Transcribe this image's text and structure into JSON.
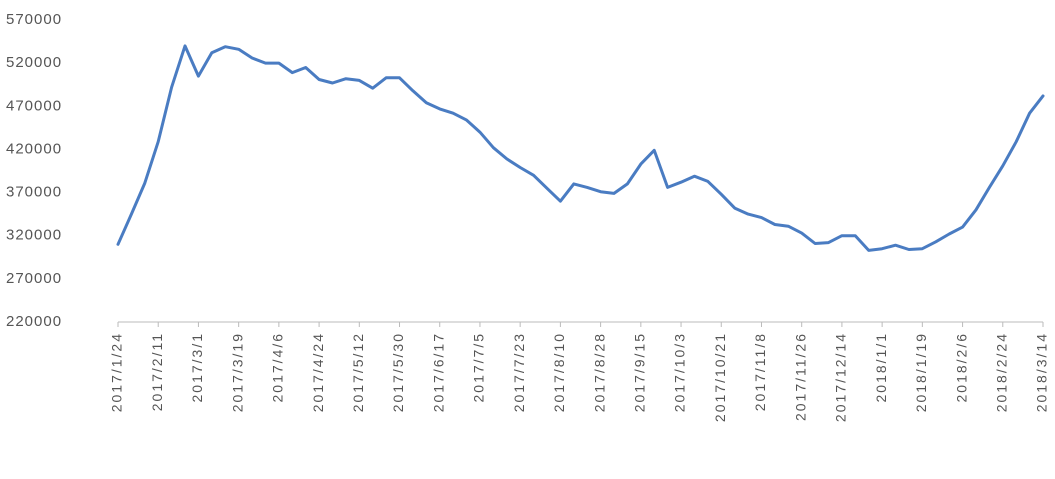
{
  "chart_data": {
    "type": "line",
    "categories": [
      "2017/1/24",
      null,
      null,
      "2017/2/11",
      null,
      null,
      "2017/3/1",
      null,
      null,
      "2017/3/19",
      null,
      null,
      "2017/4/6",
      null,
      null,
      "2017/4/24",
      null,
      null,
      "2017/5/12",
      null,
      null,
      "2017/5/30",
      null,
      null,
      "2017/6/17",
      null,
      null,
      "2017/7/5",
      null,
      null,
      "2017/7/23",
      null,
      null,
      "2017/8/10",
      null,
      null,
      "2017/8/28",
      null,
      null,
      "2017/9/15",
      null,
      null,
      "2017/10/3",
      null,
      null,
      "2017/10/21",
      null,
      null,
      "2017/11/8",
      null,
      null,
      "2017/11/26",
      null,
      null,
      "2017/12/14",
      null,
      null,
      "2018/1/1",
      null,
      null,
      "2018/1/19",
      null,
      null,
      "2018/2/6",
      null,
      null,
      "2018/2/24",
      null,
      null,
      "2018/3/14"
    ],
    "series": [
      {
        "color": "#4a7cc2",
        "values": [
          310000,
          345000,
          381000,
          429000,
          492000,
          540000,
          505000,
          532000,
          539000,
          536000,
          526000,
          520000,
          520000,
          509000,
          515000,
          501000,
          497000,
          502000,
          500000,
          491000,
          503000,
          503000,
          488000,
          474000,
          467000,
          462000,
          454000,
          440000,
          422000,
          409000,
          399000,
          390000,
          375000,
          360000,
          380000,
          376000,
          371000,
          369000,
          380000,
          403000,
          419000,
          376000,
          382000,
          389000,
          383000,
          368000,
          352000,
          345000,
          341000,
          333000,
          331000,
          323000,
          311000,
          312000,
          320000,
          320000,
          303000,
          305000,
          309000,
          304000,
          305000,
          313000,
          322000,
          330000,
          350000,
          376000,
          401000,
          429000,
          462000,
          482000
        ]
      }
    ],
    "ylim": [
      220000,
      570000
    ],
    "yticks": [
      220000,
      270000,
      320000,
      370000,
      420000,
      470000,
      520000,
      570000
    ],
    "grid": false
  }
}
